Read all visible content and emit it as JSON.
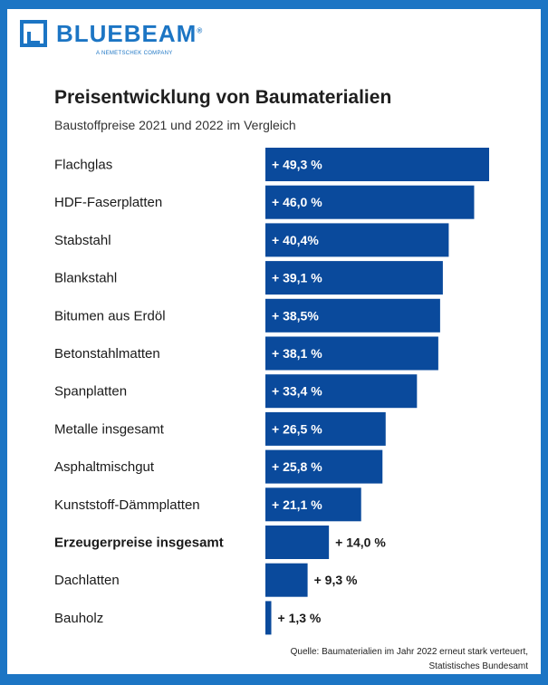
{
  "brand": {
    "name": "BLUEBEAM",
    "registered": "®",
    "tagline": "A NEMETSCHEK COMPANY"
  },
  "colors": {
    "frame": "#1c75c4",
    "bar": "#0a4a9c",
    "text": "#1a1a1a"
  },
  "chart_data": {
    "type": "bar",
    "orientation": "horizontal",
    "title": "Preisentwicklung von Baumaterialien",
    "subtitle": "Baustoffpreise 2021 und 2022 im Vergleich",
    "unit": "%",
    "categories": [
      "Flachglas",
      "HDF-Faserplatten",
      "Stabstahl",
      "Blankstahl",
      "Bitumen aus Erdöl",
      "Betonstahlmatten",
      "Spanplatten",
      "Metalle insgesamt",
      "Asphaltmischgut",
      "Kunststoff-Dämmplatten",
      "Erzeugerpreise insgesamt",
      "Dachlatten",
      "Bauholz"
    ],
    "values": [
      49.3,
      46.0,
      40.4,
      39.1,
      38.5,
      38.1,
      33.4,
      26.5,
      25.8,
      21.1,
      14.0,
      9.3,
      1.3
    ],
    "value_labels": [
      "+ 49,3 %",
      "+ 46,0 %",
      "+ 40,4%",
      "+ 39,1 %",
      "+ 38,5%",
      "+ 38,1 %",
      "+ 33,4 %",
      "+ 26,5 %",
      "+ 25,8 %",
      "+ 21,1 %",
      "+ 14,0 %",
      "+ 9,3 %",
      "+ 1,3 %"
    ],
    "highlighted": [
      "Erzeugerpreise insgesamt"
    ],
    "xlim": [
      0,
      49.3
    ]
  },
  "source": {
    "line1": "Quelle: Baumaterialien im Jahr 2022 erneut stark verteuert,",
    "line2": "Statistisches Bundesamt"
  }
}
